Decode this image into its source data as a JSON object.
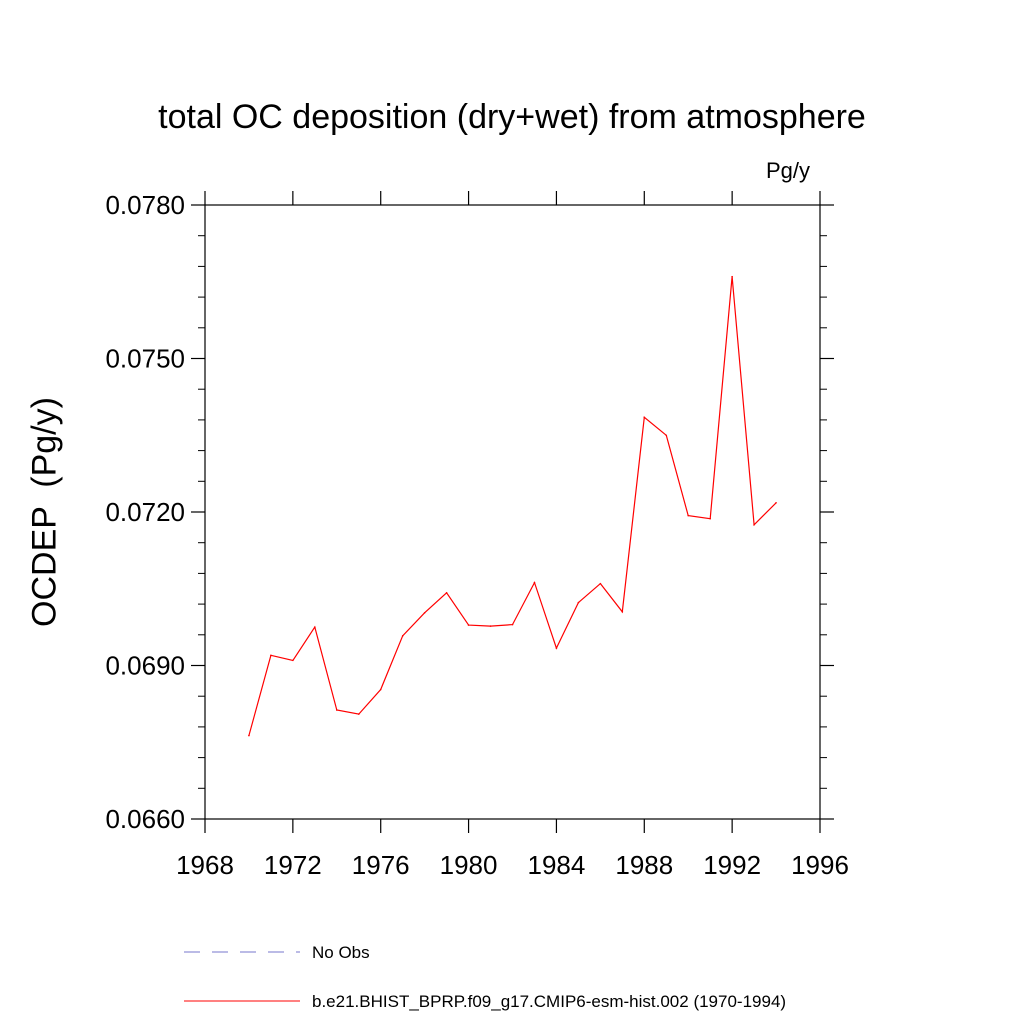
{
  "chart_data": {
    "type": "line",
    "title": "total OC deposition (dry+wet) from atmosphere",
    "units_label": "Pg/y",
    "ylabel": "OCDEP  (Pg/y)",
    "xlabel": "",
    "xlim": [
      1968,
      1996
    ],
    "ylim": [
      0.066,
      0.078
    ],
    "x_ticks": [
      1968,
      1972,
      1976,
      1980,
      1984,
      1988,
      1992,
      1996
    ],
    "y_ticks": [
      "0.0660",
      "0.0690",
      "0.0720",
      "0.0750",
      "0.0780"
    ],
    "y_tick_values": [
      0.066,
      0.069,
      0.072,
      0.075,
      0.078
    ],
    "grid": false,
    "legend_position": "bottom",
    "x": [
      1970,
      1971,
      1972,
      1973,
      1974,
      1975,
      1976,
      1977,
      1978,
      1979,
      1980,
      1981,
      1982,
      1983,
      1984,
      1985,
      1986,
      1987,
      1988,
      1989,
      1990,
      1991,
      1992,
      1993,
      1994
    ],
    "series": [
      {
        "name": "b.e21.BHIST_BPRP.f09_g17.CMIP6-esm-hist.002 (1970-1994)",
        "color": "#ff0000",
        "style": "solid",
        "values": [
          0.06763,
          0.0692,
          0.0691,
          0.06975,
          0.06813,
          0.06805,
          0.06853,
          0.06958,
          0.07003,
          0.07042,
          0.06979,
          0.06977,
          0.0698,
          0.07062,
          0.06934,
          0.07023,
          0.0706,
          0.07005,
          0.07385,
          0.0735,
          0.07193,
          0.07187,
          0.0766,
          0.07175,
          0.07218
        ]
      }
    ],
    "legend": [
      {
        "label": "No Obs",
        "color": "#7777cc",
        "style": "dashed"
      },
      {
        "label": "b.e21.BHIST_BPRP.f09_g17.CMIP6-esm-hist.002 (1970-1994)",
        "color": "#ff0000",
        "style": "solid"
      }
    ]
  }
}
